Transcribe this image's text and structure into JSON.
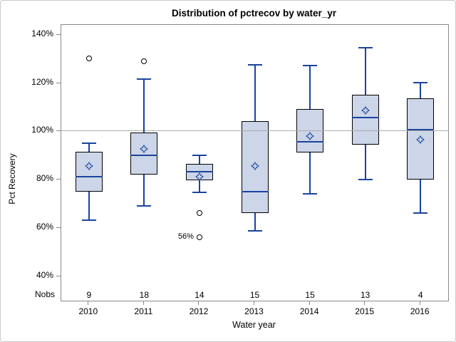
{
  "chart_data": {
    "type": "box",
    "title": "Distribution of pctrecov by water_yr",
    "xlabel": "Water year",
    "ylabel": "Pct Recovery",
    "nobs_header": "Nobs",
    "ylim": [
      30,
      145
    ],
    "y_ticks": [
      140,
      120,
      100,
      80,
      60,
      40
    ],
    "y_tick_suffix": "%",
    "refline": 100,
    "grid": false,
    "legend": "none",
    "categories": [
      "2010",
      "2011",
      "2012",
      "2013",
      "2014",
      "2015",
      "2016"
    ],
    "nobs": [
      9,
      18,
      14,
      15,
      15,
      13,
      4
    ],
    "series": [
      {
        "category": "2010",
        "n": 9,
        "whisker_low": 63,
        "q1": 75,
        "median": 81,
        "q3": 91.5,
        "whisker_high": 95,
        "mean": 85.5,
        "outliers": [
          130
        ],
        "outlier_labels": [
          ""
        ]
      },
      {
        "category": "2011",
        "n": 18,
        "whisker_low": 69,
        "q1": 82,
        "median": 90,
        "q3": 99.5,
        "whisker_high": 121.5,
        "mean": 92.5,
        "outliers": [
          129
        ],
        "outlier_labels": [
          ""
        ]
      },
      {
        "category": "2012",
        "n": 14,
        "whisker_low": 74.5,
        "q1": 79.5,
        "median": 83,
        "q3": 86.5,
        "whisker_high": 90,
        "mean": 81,
        "outliers": [
          66,
          56
        ],
        "outlier_labels": [
          "",
          "56%"
        ]
      },
      {
        "category": "2013",
        "n": 15,
        "whisker_low": 58.5,
        "q1": 66,
        "median": 75,
        "q3": 104,
        "whisker_high": 127.5,
        "mean": 85.5,
        "outliers": [],
        "outlier_labels": []
      },
      {
        "category": "2014",
        "n": 15,
        "whisker_low": 74,
        "q1": 91,
        "median": 95.5,
        "q3": 109,
        "whisker_high": 127,
        "mean": 98,
        "outliers": [],
        "outlier_labels": []
      },
      {
        "category": "2015",
        "n": 13,
        "whisker_low": 80,
        "q1": 94.5,
        "median": 105.5,
        "q3": 115,
        "whisker_high": 134.5,
        "mean": 108.5,
        "outliers": [],
        "outlier_labels": []
      },
      {
        "category": "2016",
        "n": 4,
        "whisker_low": 66,
        "q1": 80,
        "median": 100.5,
        "q3": 113.5,
        "whisker_high": 120,
        "mean": 96.5,
        "outliers": [],
        "outlier_labels": []
      }
    ],
    "colors": {
      "box_fill": "#ccd6e8",
      "box_border": "#000000",
      "line": "#1b449e",
      "outlier": "#000000",
      "refline": "#aaaaaa",
      "axis": "#8a8a8a",
      "text": "#000000",
      "frame_border": "#c9c9c9"
    }
  }
}
